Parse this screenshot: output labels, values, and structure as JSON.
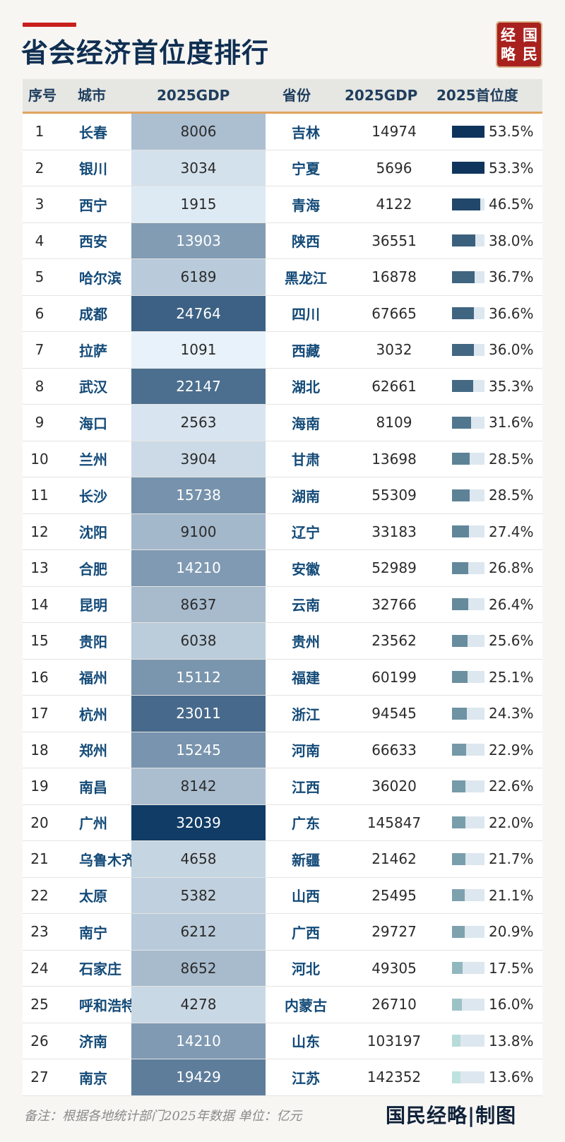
{
  "page": {
    "title": "省会经济首位度排行",
    "logo": [
      "经",
      "国",
      "略",
      "民"
    ],
    "footer_note": "备注：根据各地统计部门2025年数据 单位：亿元",
    "footer_brand": "国民经略|制图"
  },
  "colors": {
    "header_bg": "#e6e6e2",
    "header_rule": "#e1a35d",
    "accent": "#c8211c",
    "city_text": "#134a78"
  },
  "chart_data": {
    "type": "table",
    "columns": [
      "序号",
      "城市",
      "2025GDP",
      "省份",
      "2025GDP",
      "2025首位度"
    ],
    "rows": [
      {
        "rank": "1",
        "city": "长春",
        "city_gdp": "8006",
        "province": "吉林",
        "province_gdp": "14974",
        "primacy": "53.5%",
        "primacy_value": 53.5
      },
      {
        "rank": "2",
        "city": "银川",
        "city_gdp": "3034",
        "province": "宁夏",
        "province_gdp": "5696",
        "primacy": "53.3%",
        "primacy_value": 53.3
      },
      {
        "rank": "3",
        "city": "西宁",
        "city_gdp": "1915",
        "province": "青海",
        "province_gdp": "4122",
        "primacy": "46.5%",
        "primacy_value": 46.5
      },
      {
        "rank": "4",
        "city": "西安",
        "city_gdp": "13903",
        "province": "陕西",
        "province_gdp": "36551",
        "primacy": "38.0%",
        "primacy_value": 38.0
      },
      {
        "rank": "5",
        "city": "哈尔滨",
        "city_gdp": "6189",
        "province": "黑龙江",
        "province_gdp": "16878",
        "primacy": "36.7%",
        "primacy_value": 36.7
      },
      {
        "rank": "6",
        "city": "成都",
        "city_gdp": "24764",
        "province": "四川",
        "province_gdp": "67665",
        "primacy": "36.6%",
        "primacy_value": 36.6
      },
      {
        "rank": "7",
        "city": "拉萨",
        "city_gdp": "1091",
        "province": "西藏",
        "province_gdp": "3032",
        "primacy": "36.0%",
        "primacy_value": 36.0
      },
      {
        "rank": "8",
        "city": "武汉",
        "city_gdp": "22147",
        "province": "湖北",
        "province_gdp": "62661",
        "primacy": "35.3%",
        "primacy_value": 35.3
      },
      {
        "rank": "9",
        "city": "海口",
        "city_gdp": "2563",
        "province": "海南",
        "province_gdp": "8109",
        "primacy": "31.6%",
        "primacy_value": 31.6
      },
      {
        "rank": "10",
        "city": "兰州",
        "city_gdp": "3904",
        "province": "甘肃",
        "province_gdp": "13698",
        "primacy": "28.5%",
        "primacy_value": 28.5
      },
      {
        "rank": "11",
        "city": "长沙",
        "city_gdp": "15738",
        "province": "湖南",
        "province_gdp": "55309",
        "primacy": "28.5%",
        "primacy_value": 28.5
      },
      {
        "rank": "12",
        "city": "沈阳",
        "city_gdp": "9100",
        "province": "辽宁",
        "province_gdp": "33183",
        "primacy": "27.4%",
        "primacy_value": 27.4
      },
      {
        "rank": "13",
        "city": "合肥",
        "city_gdp": "14210",
        "province": "安徽",
        "province_gdp": "52989",
        "primacy": "26.8%",
        "primacy_value": 26.8
      },
      {
        "rank": "14",
        "city": "昆明",
        "city_gdp": "8637",
        "province": "云南",
        "province_gdp": "32766",
        "primacy": "26.4%",
        "primacy_value": 26.4
      },
      {
        "rank": "15",
        "city": "贵阳",
        "city_gdp": "6038",
        "province": "贵州",
        "province_gdp": "23562",
        "primacy": "25.6%",
        "primacy_value": 25.6
      },
      {
        "rank": "16",
        "city": "福州",
        "city_gdp": "15112",
        "province": "福建",
        "province_gdp": "60199",
        "primacy": "25.1%",
        "primacy_value": 25.1
      },
      {
        "rank": "17",
        "city": "杭州",
        "city_gdp": "23011",
        "province": "浙江",
        "province_gdp": "94545",
        "primacy": "24.3%",
        "primacy_value": 24.3
      },
      {
        "rank": "18",
        "city": "郑州",
        "city_gdp": "15245",
        "province": "河南",
        "province_gdp": "66633",
        "primacy": "22.9%",
        "primacy_value": 22.9
      },
      {
        "rank": "19",
        "city": "南昌",
        "city_gdp": "8142",
        "province": "江西",
        "province_gdp": "36020",
        "primacy": "22.6%",
        "primacy_value": 22.6
      },
      {
        "rank": "20",
        "city": "广州",
        "city_gdp": "32039",
        "province": "广东",
        "province_gdp": "145847",
        "primacy": "22.0%",
        "primacy_value": 22.0
      },
      {
        "rank": "21",
        "city": "乌鲁木齐",
        "city_gdp": "4658",
        "province": "新疆",
        "province_gdp": "21462",
        "primacy": "21.7%",
        "primacy_value": 21.7
      },
      {
        "rank": "22",
        "city": "太原",
        "city_gdp": "5382",
        "province": "山西",
        "province_gdp": "25495",
        "primacy": "21.1%",
        "primacy_value": 21.1
      },
      {
        "rank": "23",
        "city": "南宁",
        "city_gdp": "6212",
        "province": "广西",
        "province_gdp": "29727",
        "primacy": "20.9%",
        "primacy_value": 20.9
      },
      {
        "rank": "24",
        "city": "石家庄",
        "city_gdp": "8652",
        "province": "河北",
        "province_gdp": "49305",
        "primacy": "17.5%",
        "primacy_value": 17.5
      },
      {
        "rank": "25",
        "city": "呼和浩特",
        "city_gdp": "4278",
        "province": "内蒙古",
        "province_gdp": "26710",
        "primacy": "16.0%",
        "primacy_value": 16.0
      },
      {
        "rank": "26",
        "city": "济南",
        "city_gdp": "14210",
        "province": "山东",
        "province_gdp": "103197",
        "primacy": "13.8%",
        "primacy_value": 13.8
      },
      {
        "rank": "27",
        "city": "南京",
        "city_gdp": "19429",
        "province": "江苏",
        "province_gdp": "142352",
        "primacy": "13.6%",
        "primacy_value": 13.6
      }
    ]
  }
}
